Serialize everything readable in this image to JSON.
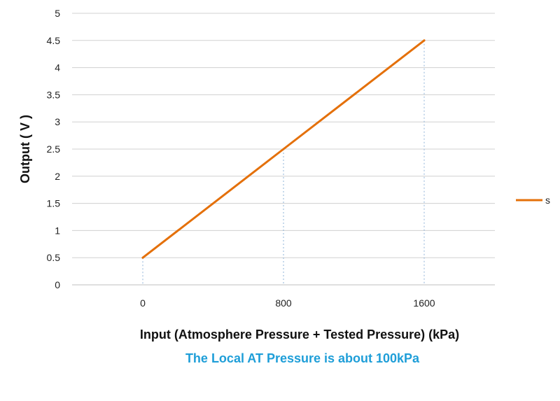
{
  "chart_data": {
    "type": "line",
    "x": [
      0,
      800,
      1600
    ],
    "series": [
      {
        "name": "s",
        "x": [
          0,
          800,
          1600
        ],
        "y": [
          0.5,
          2.5,
          4.5
        ]
      }
    ],
    "xlabel": "Input (Atmosphere Pressure + Tested Pressure) (kPa)",
    "ylabel": "Output ( V )",
    "annotation": "The Local AT Pressure is about 100kPa",
    "x_ticks": [
      "0",
      "800",
      "1600"
    ],
    "y_ticks": [
      "0",
      "0.5",
      "1",
      "1.5",
      "2",
      "2.5",
      "3",
      "3.5",
      "4",
      "4.5",
      "5"
    ],
    "ylim": [
      0,
      5
    ],
    "grid": true,
    "legend_position": "right",
    "colors": {
      "line": "#E4700A",
      "grid": "#D0D0D0",
      "drop_line": "#8FB3DA",
      "annotation": "#1E9ED8"
    }
  }
}
